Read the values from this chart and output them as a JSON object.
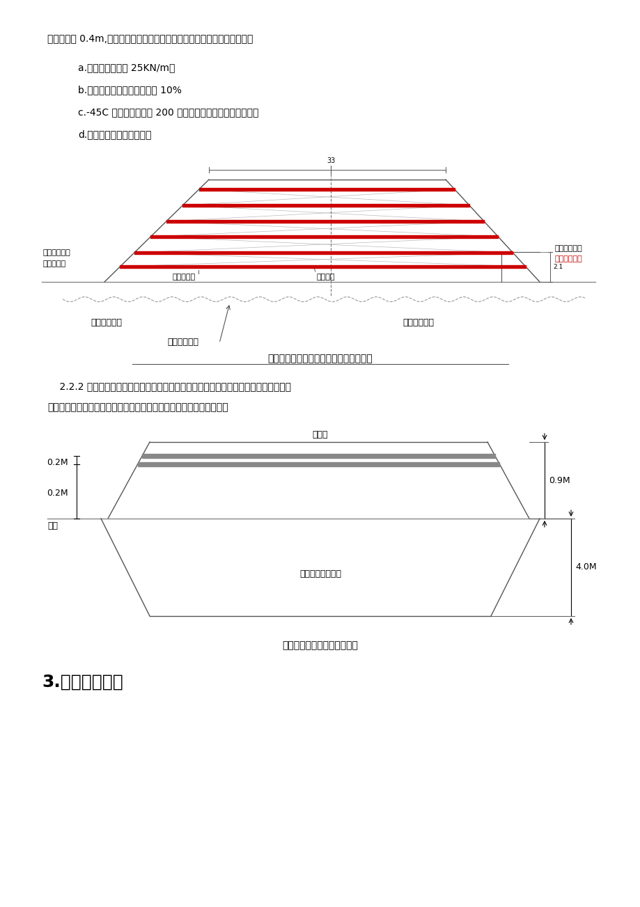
{
  "bg_color": "#ffffff",
  "text_color": "#000000",
  "line_color": "#555555",
  "red_color": "#cc0000",
  "para1": "层距路基面 0.4m,分为土工格栅和经编土工格栅两种。其各项设计参数为：",
  "item_a": "a.抗拉强度不小于 25KN/m；",
  "item_b": "b.对应的最大拉伸应变不大于 10%",
  "item_c": "c.-45C 低温下冻融循环 200 次抗拉强度不小于设计标准值；",
  "item_d": "d.具有长期的抗老化性能。",
  "diagram1_title": "高含冰量冻土地区加筋路堤标准横断面图",
  "label_left1": "碎填片石护道",
  "label_left2": "或填土护道",
  "label_right1": "碎填片石护道",
  "label_right2": "或填土护道一",
  "label_fine": "细粒土填料",
  "label_grid": "土工格栅",
  "label_frozen_left": "高含冰量冻土",
  "label_frozen_right": "高含冰量冻土",
  "label_frost_limit": "冻土天然上限",
  "para2_1": "    2.2.2 挤塑保温板：铺设保温板，目的是形成冻土隔热层，提高保温隔热效果，遗免热",
  "para2_2": "力传入冻土层，引起冻土融化或上限下移，从而造成路基下沉或破坏。",
  "diagram2_title": "挤塑保温板铺设标准横断面图",
  "label_roadbed": "路基面",
  "label_02m_left": "0.2M",
  "label_09m_right": "0.9M",
  "label_02m_mid": "0.2M",
  "label_ground": "地面",
  "label_40m": "4.0M",
  "label_fill": "挖方换填粗颗粒土",
  "section3_title": "3.施工技术要点"
}
